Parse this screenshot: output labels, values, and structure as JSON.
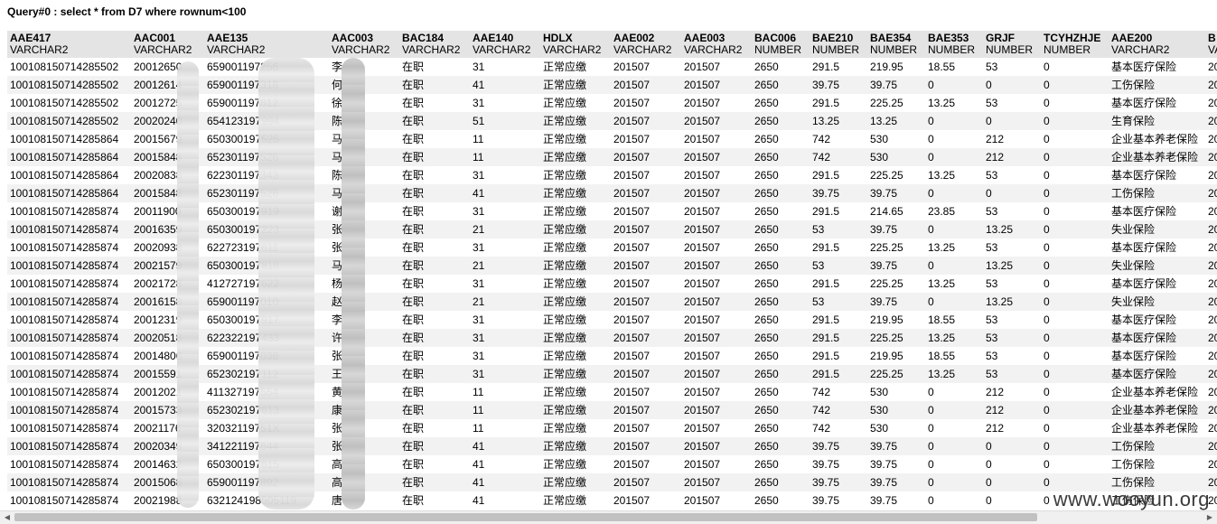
{
  "query": {
    "title": "Query#0 : select * from D7 where rownum<100"
  },
  "columns": [
    {
      "name": "AAE417",
      "type": "VARCHAR2"
    },
    {
      "name": "AAC001",
      "type": "VARCHAR2"
    },
    {
      "name": "AAE135",
      "type": "VARCHAR2"
    },
    {
      "name": "AAC003",
      "type": "VARCHAR2"
    },
    {
      "name": "BAC184",
      "type": "VARCHAR2"
    },
    {
      "name": "AAE140",
      "type": "VARCHAR2"
    },
    {
      "name": "HDLX",
      "type": "VARCHAR2"
    },
    {
      "name": "AAE002",
      "type": "VARCHAR2"
    },
    {
      "name": "AAE003",
      "type": "VARCHAR2"
    },
    {
      "name": "BAC006",
      "type": "NUMBER"
    },
    {
      "name": "BAE210",
      "type": "NUMBER"
    },
    {
      "name": "BAE354",
      "type": "NUMBER"
    },
    {
      "name": "BAE353",
      "type": "NUMBER"
    },
    {
      "name": "GRJF",
      "type": "NUMBER"
    },
    {
      "name": "TCYHZHJE",
      "type": "NUMBER"
    },
    {
      "name": "AAE200",
      "type": "VARCHAR2"
    },
    {
      "name": "B",
      "type": "VA"
    }
  ],
  "rows": [
    [
      "100108150714285502",
      "20012650",
      "659001197256",
      "李",
      "在职",
      "31",
      "正常应缴",
      "201507",
      "201507",
      "2650",
      "291.5",
      "219.95",
      "18.55",
      "53",
      "0",
      "基本医疗保险",
      "20"
    ],
    [
      "100108150714285502",
      "20012614",
      "659001197318",
      "何",
      "在职",
      "41",
      "正常应缴",
      "201507",
      "201507",
      "2650",
      "39.75",
      "39.75",
      "0",
      "0",
      "0",
      "工伤保险",
      "20"
    ],
    [
      "100108150714285502",
      "20012725",
      "659001197612",
      "徐",
      "在职",
      "31",
      "正常应缴",
      "201507",
      "201507",
      "2650",
      "291.5",
      "225.25",
      "13.25",
      "53",
      "0",
      "基本医疗保险",
      "20"
    ],
    [
      "100108150714285502",
      "20020240",
      "654123197994",
      "陈",
      "在职",
      "51",
      "正常应缴",
      "201507",
      "201507",
      "2650",
      "13.25",
      "13.25",
      "0",
      "0",
      "0",
      "生育保险",
      "20"
    ],
    [
      "100108150714285864",
      "20015679",
      "650300197525",
      "马",
      "在职",
      "11",
      "正常应缴",
      "201507",
      "201507",
      "2650",
      "742",
      "530",
      "0",
      "212",
      "0",
      "企业基本养老保险",
      "20"
    ],
    [
      "100108150714285864",
      "20015848",
      "652301197526",
      "马",
      "在职",
      "11",
      "正常应缴",
      "201507",
      "201507",
      "2650",
      "742",
      "530",
      "0",
      "212",
      "0",
      "企业基本养老保险",
      "20"
    ],
    [
      "100108150714285864",
      "20020838",
      "622301197343",
      "陈",
      "在职",
      "31",
      "正常应缴",
      "201507",
      "201507",
      "2650",
      "291.5",
      "225.25",
      "13.25",
      "53",
      "0",
      "基本医疗保险",
      "20"
    ],
    [
      "100108150714285864",
      "20015848",
      "652301197526",
      "马",
      "在职",
      "41",
      "正常应缴",
      "201507",
      "201507",
      "2650",
      "39.75",
      "39.75",
      "0",
      "0",
      "0",
      "工伤保险",
      "20"
    ],
    [
      "100108150714285874",
      "20011900",
      "650300197919",
      "谢",
      "在职",
      "31",
      "正常应缴",
      "201507",
      "201507",
      "2650",
      "291.5",
      "214.65",
      "23.85",
      "53",
      "0",
      "基本医疗保险",
      "20"
    ],
    [
      "100108150714285874",
      "20016359",
      "650300197223",
      "张",
      "在职",
      "21",
      "正常应缴",
      "201507",
      "201507",
      "2650",
      "53",
      "39.75",
      "0",
      "13.25",
      "0",
      "失业保险",
      "20"
    ],
    [
      "100108150714285874",
      "20020938",
      "622723197611",
      "张",
      "在职",
      "31",
      "正常应缴",
      "201507",
      "201507",
      "2650",
      "291.5",
      "225.25",
      "13.25",
      "53",
      "0",
      "基本医疗保险",
      "20"
    ],
    [
      "100108150714285874",
      "20021579",
      "650300197818",
      "马",
      "在职",
      "21",
      "正常应缴",
      "201507",
      "201507",
      "2650",
      "53",
      "39.75",
      "0",
      "13.25",
      "0",
      "失业保险",
      "20"
    ],
    [
      "100108150714285874",
      "20021728",
      "412727197622",
      "杨",
      "在职",
      "31",
      "正常应缴",
      "201507",
      "201507",
      "2650",
      "291.5",
      "225.25",
      "13.25",
      "53",
      "0",
      "基本医疗保险",
      "20"
    ],
    [
      "100108150714285874",
      "20016158",
      "659001197010",
      "赵",
      "在职",
      "21",
      "正常应缴",
      "201507",
      "201507",
      "2650",
      "53",
      "39.75",
      "0",
      "13.25",
      "0",
      "失业保险",
      "20"
    ],
    [
      "100108150714285874",
      "20012319",
      "650300197917",
      "李",
      "在职",
      "31",
      "正常应缴",
      "201507",
      "201507",
      "2650",
      "291.5",
      "219.95",
      "18.55",
      "53",
      "0",
      "基本医疗保险",
      "20"
    ],
    [
      "100108150714285874",
      "20020518",
      "622322197433",
      "许",
      "在职",
      "31",
      "正常应缴",
      "201507",
      "201507",
      "2650",
      "291.5",
      "225.25",
      "13.25",
      "53",
      "0",
      "基本医疗保险",
      "20"
    ],
    [
      "100108150714285874",
      "20014806",
      "659001197036",
      "张",
      "在职",
      "31",
      "正常应缴",
      "201507",
      "201507",
      "2650",
      "291.5",
      "219.95",
      "18.55",
      "53",
      "0",
      "基本医疗保险",
      "20"
    ],
    [
      "100108150714285874",
      "20015591",
      "652302197112",
      "王",
      "在职",
      "31",
      "正常应缴",
      "201507",
      "201507",
      "2650",
      "291.5",
      "225.25",
      "13.25",
      "53",
      "0",
      "基本医疗保险",
      "20"
    ],
    [
      "100108150714285874",
      "20012021",
      "411327197554",
      "黄",
      "在职",
      "11",
      "正常应缴",
      "201507",
      "201507",
      "2650",
      "742",
      "530",
      "0",
      "212",
      "0",
      "企业基本养老保险",
      "20"
    ],
    [
      "100108150714285874",
      "20015733",
      "652302197613",
      "康",
      "在职",
      "11",
      "正常应缴",
      "201507",
      "201507",
      "2650",
      "742",
      "530",
      "0",
      "212",
      "0",
      "企业基本养老保险",
      "20"
    ],
    [
      "100108150714285874",
      "20021176",
      "32032119751X",
      "张",
      "在职",
      "11",
      "正常应缴",
      "201507",
      "201507",
      "2650",
      "742",
      "530",
      "0",
      "212",
      "0",
      "企业基本养老保险",
      "20"
    ],
    [
      "100108150714285874",
      "20020349",
      "341221197644",
      "张",
      "在职",
      "41",
      "正常应缴",
      "201507",
      "201507",
      "2650",
      "39.75",
      "39.75",
      "0",
      "0",
      "0",
      "工伤保险",
      "20"
    ],
    [
      "100108150714285874",
      "20014632",
      "650300197615",
      "高",
      "在职",
      "41",
      "正常应缴",
      "201507",
      "201507",
      "2650",
      "39.75",
      "39.75",
      "0",
      "0",
      "0",
      "工伤保险",
      "20"
    ],
    [
      "100108150714285874",
      "20015068",
      "659001197892",
      "高",
      "在职",
      "41",
      "正常应缴",
      "201507",
      "201507",
      "2650",
      "39.75",
      "39.75",
      "0",
      "0",
      "0",
      "工伤保险",
      "20"
    ],
    [
      "100108150714285874",
      "20021988",
      "632124198505119",
      "唐",
      "在职",
      "41",
      "正常应缴",
      "201507",
      "201507",
      "2650",
      "39.75",
      "39.75",
      "0",
      "0",
      "0",
      "工伤保险",
      "20"
    ]
  ],
  "watermark": "www.wooyun.org",
  "colors": {
    "header_bg": "#e4e4e4",
    "stripe_bg": "#f2f2f2",
    "scrollbar_thumb": "#c1c1c1"
  }
}
